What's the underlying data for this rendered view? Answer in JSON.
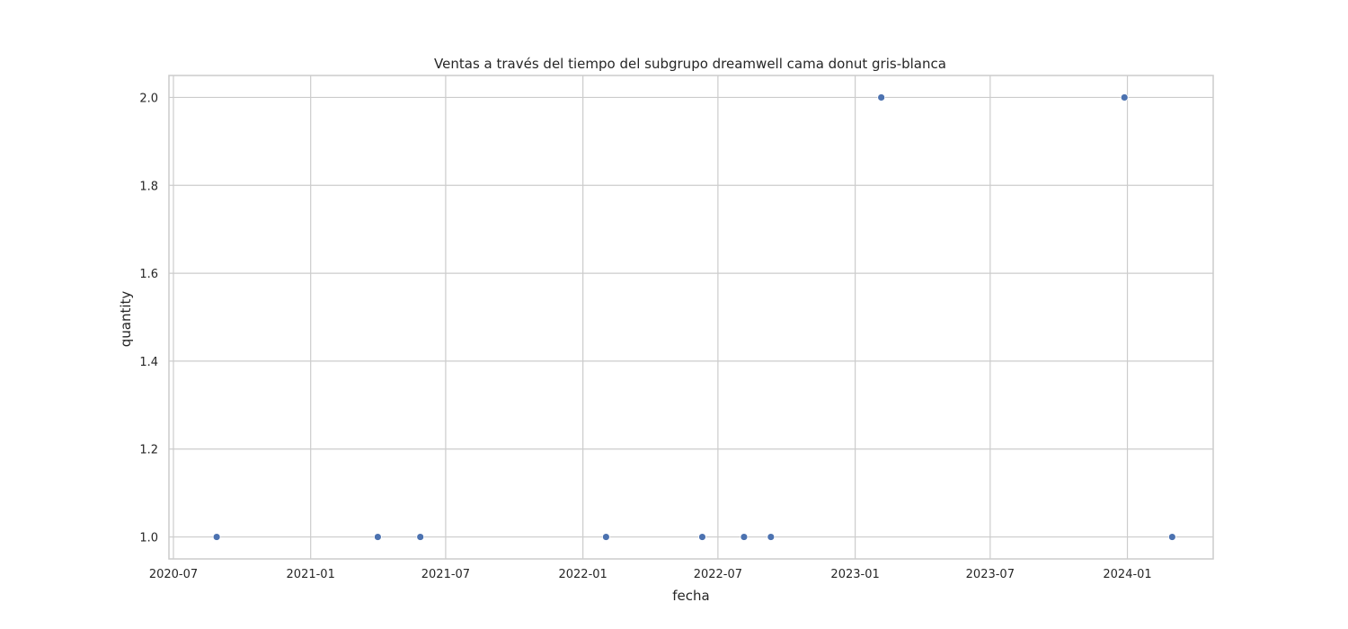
{
  "chart_data": {
    "type": "scatter",
    "title": "Ventas a través del tiempo del subgrupo dreamwell cama donut gris-blanca",
    "xlabel": "fecha",
    "ylabel": "quantity",
    "x_type": "date",
    "xlim": [
      "2020-06-25",
      "2024-04-25"
    ],
    "ylim": [
      0.95,
      2.05
    ],
    "x_ticks": [
      "2020-07",
      "2021-01",
      "2021-07",
      "2022-01",
      "2022-07",
      "2023-01",
      "2023-07",
      "2024-01"
    ],
    "y_ticks": [
      "1.0",
      "1.2",
      "1.4",
      "1.6",
      "1.8",
      "2.0"
    ],
    "grid": true,
    "point_color": "#4c72b0",
    "points": [
      {
        "x": "2020-08-28",
        "y": 1
      },
      {
        "x": "2021-04-01",
        "y": 1
      },
      {
        "x": "2021-05-28",
        "y": 1
      },
      {
        "x": "2022-02-01",
        "y": 1
      },
      {
        "x": "2022-06-10",
        "y": 1
      },
      {
        "x": "2022-08-05",
        "y": 1
      },
      {
        "x": "2022-09-10",
        "y": 1
      },
      {
        "x": "2023-02-05",
        "y": 2
      },
      {
        "x": "2023-12-28",
        "y": 2
      },
      {
        "x": "2024-03-01",
        "y": 1
      }
    ]
  }
}
